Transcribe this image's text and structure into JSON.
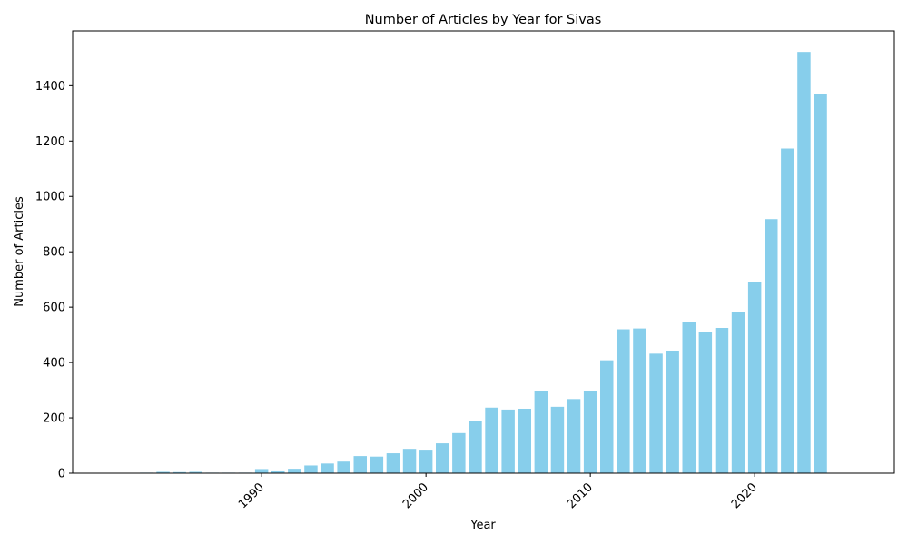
{
  "chart_data": {
    "type": "bar",
    "title": "Number of Articles by Year for Sivas",
    "xlabel": "Year",
    "ylabel": "Number of Articles",
    "bar_color": "#87CEEB",
    "x": [
      1983,
      1984,
      1985,
      1986,
      1987,
      1988,
      1989,
      1990,
      1991,
      1992,
      1993,
      1994,
      1995,
      1996,
      1997,
      1998,
      1999,
      2000,
      2001,
      2002,
      2003,
      2004,
      2005,
      2006,
      2007,
      2008,
      2009,
      2010,
      2011,
      2012,
      2013,
      2014,
      2015,
      2016,
      2017,
      2018,
      2019,
      2020,
      2021,
      2022,
      2023,
      2024
    ],
    "values": [
      2,
      5,
      4,
      5,
      2,
      2,
      2,
      15,
      10,
      16,
      28,
      35,
      42,
      62,
      60,
      72,
      88,
      85,
      108,
      145,
      190,
      237,
      230,
      233,
      297,
      240,
      268,
      297,
      408,
      520,
      523,
      432,
      443,
      545,
      510,
      525,
      582,
      690,
      918,
      1173,
      1522,
      1371
    ],
    "xlim": [
      1978.5,
      2028.5
    ],
    "ylim": [
      0,
      1598
    ],
    "xticks": [
      1990,
      2000,
      2010,
      2020
    ],
    "yticks": [
      0,
      200,
      400,
      600,
      800,
      1000,
      1200,
      1400
    ],
    "grid": false,
    "legend": "none"
  }
}
